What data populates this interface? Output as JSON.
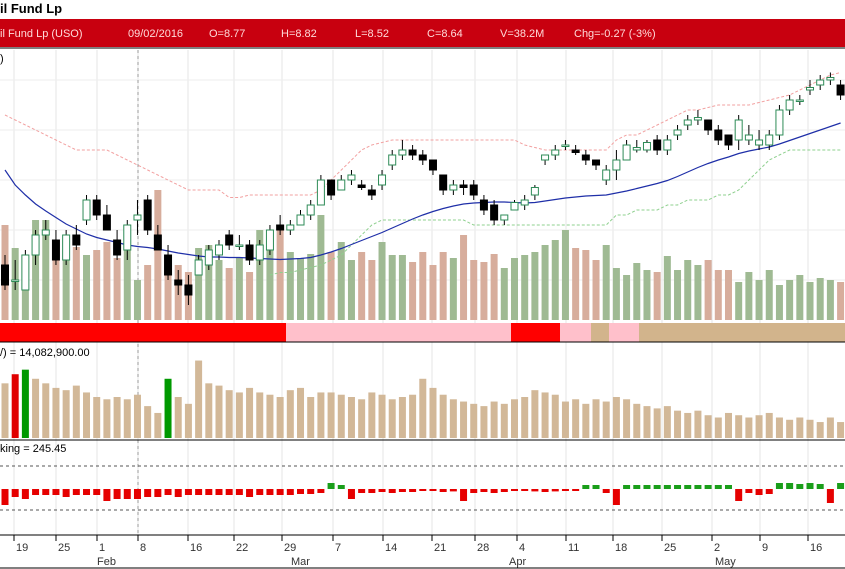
{
  "header": {
    "title": "il Fund Lp",
    "name": "il Fund Lp (USO)",
    "date": "09/02/2016",
    "open": "O=8.77",
    "high": "H=8.82",
    "low": "L=8.52",
    "close": "C=8.64",
    "volume": "V=38.2M",
    "change": "Chg=-0.27 (-3%)"
  },
  "colors": {
    "header_bg": "#c8000f",
    "up_candle": "#2e8b57",
    "down_candle": "#000000",
    "sma_line": "#1f2fa8",
    "vol_up": "#9fba93",
    "vol_down": "#d7ad9c",
    "volume_bar": "#d2b898",
    "volume_spike_red": "#e00000",
    "volume_spike_green": "#009900",
    "breadth_red": "#e60000",
    "breadth_green": "#1a9e1a"
  },
  "panels": {
    "main_legend": ")",
    "volume_label": "/) = 14,082,900.00",
    "indicator_label": "king = 245.45"
  },
  "chart_data": [
    {
      "type": "candlestick",
      "series": [
        {
          "name": "price",
          "values": [
            [
              9.5,
              9.7,
              9.0,
              9.1
            ],
            [
              9.2,
              9.6,
              9.0,
              9.2
            ],
            [
              9.0,
              9.8,
              9.0,
              9.7
            ],
            [
              9.7,
              10.2,
              9.5,
              10.1
            ],
            [
              10.1,
              10.4,
              10.0,
              10.2
            ],
            [
              10.0,
              10.2,
              9.5,
              9.6
            ],
            [
              9.6,
              10.2,
              9.5,
              10.1
            ],
            [
              10.1,
              10.3,
              9.8,
              9.9
            ],
            [
              10.4,
              10.9,
              10.3,
              10.8
            ],
            [
              10.8,
              10.9,
              10.4,
              10.5
            ],
            [
              10.5,
              10.7,
              10.2,
              10.2
            ],
            [
              10.0,
              10.2,
              9.6,
              9.7
            ],
            [
              9.8,
              10.4,
              9.6,
              10.3
            ],
            [
              10.4,
              10.8,
              10.1,
              10.5
            ],
            [
              10.8,
              10.9,
              10.1,
              10.2
            ],
            [
              10.1,
              10.3,
              9.8,
              9.8
            ],
            [
              9.7,
              9.9,
              9.2,
              9.3
            ],
            [
              9.2,
              9.4,
              8.9,
              9.1
            ],
            [
              9.1,
              9.3,
              8.7,
              8.9
            ],
            [
              9.3,
              9.7,
              9.3,
              9.6
            ],
            [
              9.5,
              9.9,
              9.4,
              9.8
            ],
            [
              9.7,
              10.0,
              9.6,
              9.9
            ],
            [
              10.1,
              10.2,
              9.8,
              9.9
            ],
            [
              9.9,
              10.1,
              9.8,
              9.9
            ],
            [
              9.9,
              10.0,
              9.5,
              9.6
            ],
            [
              9.6,
              10.0,
              9.5,
              9.9
            ],
            [
              9.8,
              10.3,
              9.7,
              10.2
            ],
            [
              10.3,
              10.5,
              10.1,
              10.2
            ],
            [
              10.2,
              10.4,
              10.1,
              10.3
            ],
            [
              10.3,
              10.6,
              10.3,
              10.5
            ],
            [
              10.5,
              10.8,
              10.4,
              10.7
            ],
            [
              10.7,
              11.3,
              10.7,
              11.2
            ],
            [
              11.2,
              11.2,
              10.8,
              10.9
            ],
            [
              11.0,
              11.3,
              11.0,
              11.2
            ],
            [
              11.2,
              11.4,
              11.1,
              11.3
            ],
            [
              11.1,
              11.2,
              11.0,
              11.05
            ],
            [
              11.0,
              11.1,
              10.8,
              10.9
            ],
            [
              11.1,
              11.4,
              11.0,
              11.3
            ],
            [
              11.5,
              11.8,
              11.4,
              11.7
            ],
            [
              11.7,
              12.0,
              11.6,
              11.8
            ],
            [
              11.8,
              11.9,
              11.6,
              11.7
            ],
            [
              11.7,
              11.8,
              11.5,
              11.6
            ],
            [
              11.6,
              11.6,
              11.3,
              11.4
            ],
            [
              11.3,
              11.3,
              10.9,
              11.0
            ],
            [
              11.0,
              11.2,
              10.9,
              11.1
            ],
            [
              11.1,
              11.2,
              10.9,
              11.05
            ],
            [
              11.1,
              11.2,
              10.8,
              10.9
            ],
            [
              10.8,
              10.9,
              10.5,
              10.6
            ],
            [
              10.7,
              10.8,
              10.3,
              10.4
            ],
            [
              10.4,
              10.5,
              10.3,
              10.5
            ],
            [
              10.6,
              10.8,
              10.6,
              10.75
            ],
            [
              10.7,
              10.9,
              10.6,
              10.8
            ],
            [
              10.9,
              11.1,
              10.8,
              11.05
            ],
            [
              11.6,
              11.7,
              11.5,
              11.7
            ],
            [
              11.7,
              11.9,
              11.6,
              11.8
            ],
            [
              11.9,
              12.0,
              11.8,
              11.9
            ],
            [
              11.8,
              11.9,
              11.7,
              11.75
            ],
            [
              11.7,
              11.8,
              11.5,
              11.6
            ],
            [
              11.6,
              11.6,
              11.4,
              11.5
            ],
            [
              11.2,
              11.5,
              11.1,
              11.4
            ],
            [
              11.4,
              11.8,
              11.2,
              11.6
            ],
            [
              11.6,
              12.0,
              11.6,
              11.9
            ],
            [
              11.8,
              12.0,
              11.75,
              11.85
            ],
            [
              11.8,
              12.0,
              11.75,
              11.95
            ],
            [
              12.0,
              12.1,
              11.7,
              11.8
            ],
            [
              11.8,
              12.1,
              11.7,
              12.0
            ],
            [
              12.1,
              12.3,
              12.0,
              12.2
            ],
            [
              12.3,
              12.5,
              12.2,
              12.4
            ],
            [
              12.4,
              12.6,
              12.3,
              12.45
            ],
            [
              12.4,
              12.4,
              12.1,
              12.2
            ],
            [
              12.2,
              12.3,
              11.9,
              12.0
            ],
            [
              12.1,
              12.1,
              11.8,
              11.9
            ],
            [
              12.0,
              12.5,
              11.8,
              12.4
            ],
            [
              12.0,
              12.3,
              11.9,
              12.1
            ],
            [
              11.9,
              12.2,
              11.8,
              12.0
            ],
            [
              11.9,
              12.2,
              11.8,
              12.1
            ],
            [
              12.1,
              12.7,
              12.0,
              12.6
            ],
            [
              12.6,
              12.9,
              12.5,
              12.8
            ],
            [
              12.8,
              12.9,
              12.7,
              12.8
            ],
            [
              13.0,
              13.2,
              12.9,
              13.05
            ],
            [
              13.1,
              13.3,
              13.0,
              13.2
            ],
            [
              13.2,
              13.35,
              13.1,
              13.25
            ],
            [
              13.1,
              13.2,
              12.8,
              12.9
            ]
          ]
        },
        {
          "name": "moving_average",
          "values": [
            11.4,
            11.1,
            10.9,
            10.72,
            10.58,
            10.45,
            10.32,
            10.22,
            10.12,
            10.05,
            10.0,
            9.95,
            9.9,
            9.87,
            9.85,
            9.82,
            9.78,
            9.74,
            9.71,
            9.68,
            9.66,
            9.66,
            9.65,
            9.65,
            9.64,
            9.63,
            9.62,
            9.61,
            9.62,
            9.63,
            9.65,
            9.7,
            9.76,
            9.83,
            9.91,
            9.99,
            10.07,
            10.15,
            10.24,
            10.33,
            10.42,
            10.5,
            10.57,
            10.63,
            10.68,
            10.72,
            10.74,
            10.75,
            10.76,
            10.76,
            10.75,
            10.74,
            10.75,
            10.78,
            10.81,
            10.84,
            10.86,
            10.88,
            10.89,
            10.9,
            10.94,
            10.98,
            11.03,
            11.08,
            11.13,
            11.19,
            11.27,
            11.36,
            11.45,
            11.53,
            11.6,
            11.66,
            11.73,
            11.78,
            11.82,
            11.86,
            11.92,
            11.99,
            12.06,
            12.13,
            12.2,
            12.27,
            12.34
          ]
        },
        {
          "name": "upper_band",
          "values": [
            12.5,
            12.4,
            12.3,
            12.2,
            12.1,
            12.0,
            11.9,
            11.8,
            11.8,
            11.8,
            11.8,
            11.7,
            11.6,
            11.5,
            11.4,
            11.3,
            11.2,
            11.1,
            11.0,
            11.0,
            11.0,
            11.0,
            10.85,
            10.85,
            10.9,
            10.9,
            10.9,
            10.9,
            10.9,
            10.9,
            10.9,
            11.0,
            11.2,
            11.4,
            11.6,
            11.8,
            11.9,
            11.95,
            12.0,
            12.0,
            12.0,
            12.0,
            12.0,
            12.0,
            12.0,
            12.0,
            12.0,
            12.0,
            12.0,
            12.0,
            12.0,
            11.9,
            11.85,
            11.8,
            11.8,
            11.8,
            11.8,
            11.8,
            11.8,
            11.8,
            12.0,
            12.1,
            12.1,
            12.2,
            12.3,
            12.4,
            12.5,
            12.6,
            12.6,
            12.65,
            12.7,
            12.7,
            12.7,
            12.7,
            12.75,
            12.8,
            12.85,
            12.9,
            13.0,
            13.1,
            13.2,
            13.3,
            13.35
          ]
        },
        {
          "name": "lower_band",
          "values": [
            null,
            null,
            null,
            null,
            null,
            null,
            null,
            null,
            null,
            null,
            null,
            null,
            null,
            null,
            null,
            null,
            null,
            null,
            null,
            null,
            null,
            null,
            null,
            null,
            null,
            null,
            9.3,
            9.35,
            9.35,
            9.4,
            9.45,
            9.5,
            9.6,
            9.7,
            9.9,
            10.1,
            10.3,
            10.4,
            10.4,
            10.4,
            10.4,
            10.4,
            10.4,
            10.4,
            10.4,
            10.4,
            10.3,
            10.3,
            10.3,
            10.3,
            10.3,
            10.3,
            10.3,
            10.3,
            10.3,
            10.3,
            10.3,
            10.3,
            10.3,
            10.3,
            10.5,
            10.5,
            10.6,
            10.6,
            10.6,
            10.7,
            10.7,
            10.8,
            10.8,
            10.8,
            10.9,
            10.9,
            11.0,
            11.2,
            11.4,
            11.6,
            11.7,
            11.8,
            11.8,
            11.8,
            11.8,
            11.8,
            11.8
          ]
        }
      ],
      "volume_overlay": [
        95,
        72,
        60,
        100,
        100,
        68,
        80,
        73,
        65,
        70,
        78,
        62,
        76,
        40,
        55,
        130,
        60,
        55,
        48,
        72,
        75,
        60,
        52,
        62,
        48,
        90,
        70,
        95,
        68,
        62,
        66,
        105,
        68,
        78,
        60,
        68,
        60,
        78,
        65,
        65,
        58,
        68,
        55,
        68,
        62,
        85,
        60,
        58,
        66,
        52,
        62,
        65,
        68,
        75,
        80,
        90,
        72,
        70,
        60,
        75,
        52,
        45,
        57,
        50,
        48,
        64,
        50,
        60,
        55,
        60,
        50,
        50,
        38,
        48,
        40,
        50,
        35,
        40,
        45,
        38,
        42,
        40,
        38
      ],
      "ylim": [
        8.4,
        13.8
      ]
    },
    {
      "type": "bar",
      "name": "volume",
      "values": [
        1.2,
        1.4,
        1.5,
        1.3,
        1.2,
        1.1,
        1.05,
        1.15,
        1.0,
        0.9,
        0.85,
        0.9,
        0.85,
        0.95,
        0.7,
        0.55,
        1.3,
        0.9,
        0.75,
        1.7,
        1.2,
        1.15,
        1.05,
        1.0,
        1.1,
        1.0,
        0.95,
        0.9,
        1.05,
        1.1,
        0.9,
        1.0,
        1.0,
        0.95,
        0.9,
        0.85,
        1.0,
        0.95,
        0.85,
        0.9,
        0.95,
        1.3,
        1.1,
        0.95,
        0.85,
        0.8,
        0.75,
        0.7,
        0.8,
        0.75,
        0.85,
        0.9,
        1.05,
        1.0,
        0.95,
        0.8,
        0.85,
        0.75,
        0.85,
        0.8,
        0.9,
        0.85,
        0.75,
        0.7,
        0.65,
        0.7,
        0.6,
        0.55,
        0.6,
        0.5,
        0.45,
        0.55,
        0.5,
        0.45,
        0.5,
        0.55,
        0.45,
        0.4,
        0.45,
        0.4,
        0.35,
        0.45,
        0.35
      ],
      "ylim": [
        0,
        1.8
      ]
    },
    {
      "type": "bar",
      "name": "indicator",
      "values": [
        -0.8,
        -0.4,
        -0.5,
        -0.3,
        -0.3,
        -0.3,
        -0.4,
        -0.3,
        -0.3,
        -0.3,
        -0.6,
        -0.5,
        -0.5,
        -0.5,
        -0.4,
        -0.4,
        -0.3,
        -0.4,
        -0.3,
        -0.3,
        -0.3,
        -0.3,
        -0.3,
        -0.3,
        -0.4,
        -0.3,
        -0.3,
        -0.3,
        -0.3,
        -0.25,
        -0.25,
        -0.2,
        0.3,
        0.2,
        -0.5,
        -0.2,
        -0.2,
        -0.15,
        -0.2,
        -0.15,
        -0.15,
        -0.1,
        -0.1,
        -0.15,
        -0.12,
        -0.6,
        -0.2,
        -0.15,
        -0.2,
        -0.15,
        -0.1,
        -0.1,
        -0.12,
        -0.15,
        -0.12,
        -0.1,
        -0.1,
        0.2,
        0.2,
        -0.2,
        -0.8,
        0.2,
        0.2,
        0.2,
        0.2,
        0.2,
        0.2,
        0.2,
        0.2,
        0.2,
        0.2,
        0.2,
        -0.6,
        -0.2,
        -0.3,
        -0.25,
        0.3,
        0.3,
        0.25,
        0.3,
        0.25,
        -0.7,
        0.3
      ],
      "ylim": [
        -1.2,
        1.0
      ]
    }
  ],
  "breadth_bar": [
    {
      "color": "#ff0000",
      "start": 0,
      "end": 286
    },
    {
      "color": "#ffc0cb",
      "start": 286,
      "end": 511
    },
    {
      "color": "#ff0000",
      "start": 511,
      "end": 560
    },
    {
      "color": "#ffc0cb",
      "start": 560,
      "end": 591
    },
    {
      "color": "#d2b48c",
      "start": 591,
      "end": 609
    },
    {
      "color": "#ffc0cb",
      "start": 609,
      "end": 639
    },
    {
      "color": "#d2b48c",
      "start": 639,
      "end": 845
    }
  ],
  "x_axis": {
    "day_ticks": [
      "19",
      "25",
      "1",
      "8",
      "16",
      "22",
      "29",
      "7",
      "14",
      "21",
      "28",
      "4",
      "11",
      "18",
      "25",
      "2",
      "9",
      "16"
    ],
    "month_ticks": [
      "Feb",
      "Mar",
      "Apr",
      "May"
    ]
  }
}
